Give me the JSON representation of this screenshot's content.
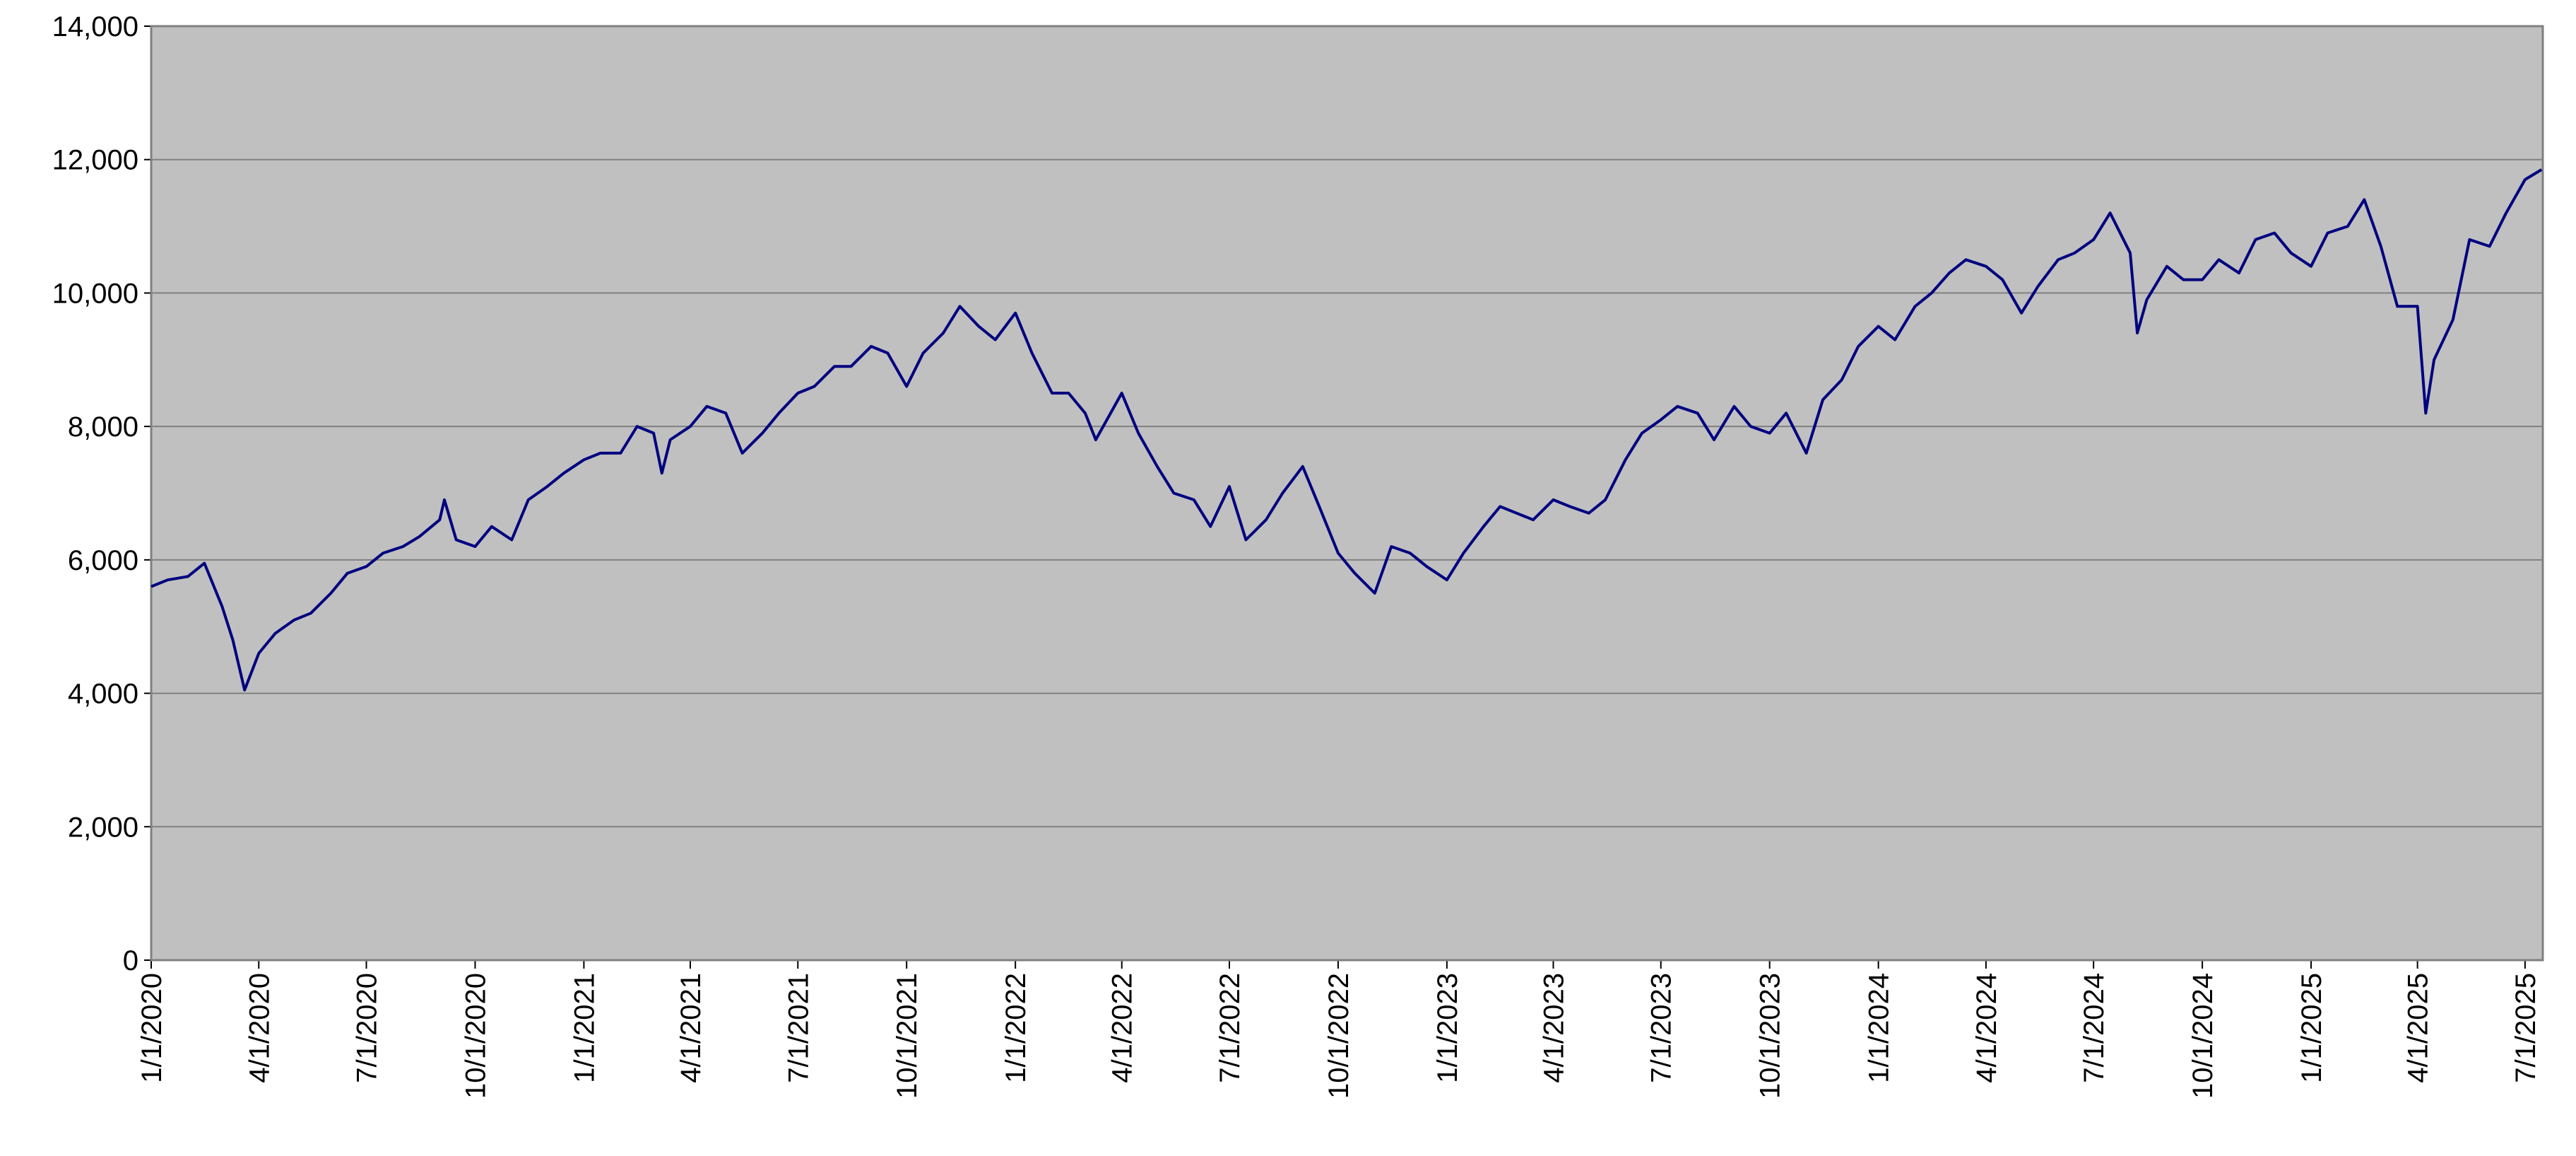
{
  "chart_data": {
    "type": "line",
    "x": [
      "2020-01-01",
      "2020-01-15",
      "2020-02-01",
      "2020-02-15",
      "2020-03-01",
      "2020-03-10",
      "2020-03-20",
      "2020-04-01",
      "2020-04-15",
      "2020-05-01",
      "2020-05-15",
      "2020-06-01",
      "2020-06-15",
      "2020-07-01",
      "2020-07-15",
      "2020-08-01",
      "2020-08-15",
      "2020-09-01",
      "2020-09-05",
      "2020-09-15",
      "2020-10-01",
      "2020-10-15",
      "2020-11-01",
      "2020-11-15",
      "2020-12-01",
      "2020-12-15",
      "2021-01-01",
      "2021-01-15",
      "2021-02-01",
      "2021-02-15",
      "2021-03-01",
      "2021-03-08",
      "2021-03-15",
      "2021-04-01",
      "2021-04-15",
      "2021-05-01",
      "2021-05-15",
      "2021-06-01",
      "2021-06-15",
      "2021-07-01",
      "2021-07-15",
      "2021-08-01",
      "2021-08-15",
      "2021-09-01",
      "2021-09-15",
      "2021-10-01",
      "2021-10-15",
      "2021-11-01",
      "2021-11-15",
      "2021-12-01",
      "2021-12-15",
      "2022-01-01",
      "2022-01-15",
      "2022-02-01",
      "2022-02-15",
      "2022-03-01",
      "2022-03-10",
      "2022-04-01",
      "2022-04-15",
      "2022-05-01",
      "2022-05-15",
      "2022-06-01",
      "2022-06-15",
      "2022-07-01",
      "2022-07-15",
      "2022-08-01",
      "2022-08-15",
      "2022-09-01",
      "2022-09-15",
      "2022-10-01",
      "2022-10-15",
      "2022-11-01",
      "2022-11-15",
      "2022-12-01",
      "2022-12-15",
      "2023-01-01",
      "2023-01-15",
      "2023-02-01",
      "2023-02-15",
      "2023-03-01",
      "2023-03-15",
      "2023-04-01",
      "2023-04-15",
      "2023-05-01",
      "2023-05-15",
      "2023-06-01",
      "2023-06-15",
      "2023-07-01",
      "2023-07-15",
      "2023-08-01",
      "2023-08-15",
      "2023-09-01",
      "2023-09-15",
      "2023-10-01",
      "2023-10-15",
      "2023-11-01",
      "2023-11-15",
      "2023-12-01",
      "2023-12-15",
      "2024-01-01",
      "2024-01-15",
      "2024-02-01",
      "2024-02-15",
      "2024-03-01",
      "2024-03-15",
      "2024-04-01",
      "2024-04-15",
      "2024-05-01",
      "2024-05-15",
      "2024-06-01",
      "2024-06-15",
      "2024-07-01",
      "2024-07-15",
      "2024-08-01",
      "2024-08-07",
      "2024-08-15",
      "2024-09-01",
      "2024-09-15",
      "2024-10-01",
      "2024-10-15",
      "2024-11-01",
      "2024-11-15",
      "2024-12-01",
      "2024-12-15",
      "2025-01-01",
      "2025-01-15",
      "2025-02-01",
      "2025-02-15",
      "2025-03-01",
      "2025-03-15",
      "2025-04-01",
      "2025-04-08",
      "2025-04-15",
      "2025-05-01",
      "2025-05-15",
      "2025-06-01",
      "2025-06-15",
      "2025-07-01",
      "2025-07-15"
    ],
    "series": [
      {
        "color": "#000080",
        "values": [
          5600,
          5700,
          5750,
          5950,
          5300,
          4800,
          4050,
          4600,
          4900,
          5100,
          5200,
          5500,
          5800,
          5900,
          6100,
          6200,
          6350,
          6600,
          6900,
          6300,
          6200,
          6500,
          6300,
          6900,
          7100,
          7300,
          7500,
          7600,
          7600,
          8000,
          7900,
          7300,
          7800,
          8000,
          8300,
          8200,
          7600,
          7900,
          8200,
          8500,
          8600,
          8900,
          8900,
          9200,
          9100,
          8600,
          9100,
          9400,
          9800,
          9500,
          9300,
          9700,
          9100,
          8500,
          8500,
          8200,
          7800,
          8500,
          7900,
          7400,
          7000,
          6900,
          6500,
          7100,
          6300,
          6600,
          7000,
          7400,
          6800,
          6100,
          5800,
          5500,
          6200,
          6100,
          5900,
          5700,
          6100,
          6500,
          6800,
          6700,
          6600,
          6900,
          6800,
          6700,
          6900,
          7500,
          7900,
          8100,
          8300,
          8200,
          7800,
          8300,
          8000,
          7900,
          8200,
          7600,
          8400,
          8700,
          9200,
          9500,
          9300,
          9800,
          10000,
          10300,
          10500,
          10400,
          10200,
          9700,
          10100,
          10500,
          10600,
          10800,
          11200,
          10600,
          9400,
          9900,
          10400,
          10200,
          10200,
          10500,
          10300,
          10800,
          10900,
          10600,
          10400,
          10900,
          11000,
          11400,
          10700,
          9800,
          9800,
          8200,
          9000,
          9600,
          10800,
          10700,
          11200,
          11700,
          11850
        ]
      }
    ],
    "xlim": [
      "2020-01-01",
      "2025-07-16"
    ],
    "xticks": [
      {
        "value": "2020-01-01",
        "label": "1/1/2020"
      },
      {
        "value": "2020-04-01",
        "label": "4/1/2020"
      },
      {
        "value": "2020-07-01",
        "label": "7/1/2020"
      },
      {
        "value": "2020-10-01",
        "label": "10/1/2020"
      },
      {
        "value": "2021-01-01",
        "label": "1/1/2021"
      },
      {
        "value": "2021-04-01",
        "label": "4/1/2021"
      },
      {
        "value": "2021-07-01",
        "label": "7/1/2021"
      },
      {
        "value": "2021-10-01",
        "label": "10/1/2021"
      },
      {
        "value": "2022-01-01",
        "label": "1/1/2022"
      },
      {
        "value": "2022-04-01",
        "label": "4/1/2022"
      },
      {
        "value": "2022-07-01",
        "label": "7/1/2022"
      },
      {
        "value": "2022-10-01",
        "label": "10/1/2022"
      },
      {
        "value": "2023-01-01",
        "label": "1/1/2023"
      },
      {
        "value": "2023-04-01",
        "label": "4/1/2023"
      },
      {
        "value": "2023-07-01",
        "label": "7/1/2023"
      },
      {
        "value": "2023-10-01",
        "label": "10/1/2023"
      },
      {
        "value": "2024-01-01",
        "label": "1/1/2024"
      },
      {
        "value": "2024-04-01",
        "label": "4/1/2024"
      },
      {
        "value": "2024-07-01",
        "label": "7/1/2024"
      },
      {
        "value": "2024-10-01",
        "label": "10/1/2024"
      },
      {
        "value": "2025-01-01",
        "label": "1/1/2025"
      },
      {
        "value": "2025-04-01",
        "label": "4/1/2025"
      },
      {
        "value": "2025-07-01",
        "label": "7/1/2025"
      }
    ],
    "ylim": [
      0,
      14000
    ],
    "yticks": [
      0,
      {
        "value": 2000,
        "label": "2,000"
      },
      {
        "value": 4000,
        "label": "4,000"
      },
      {
        "value": 6000,
        "label": "6,000"
      },
      {
        "value": 8000,
        "label": "8,000"
      },
      {
        "value": 10000,
        "label": "10,000"
      },
      {
        "value": 12000,
        "label": "12,000"
      },
      {
        "value": 14000,
        "label": "14,000"
      }
    ],
    "grid": true,
    "background": "#c0c0c0"
  }
}
